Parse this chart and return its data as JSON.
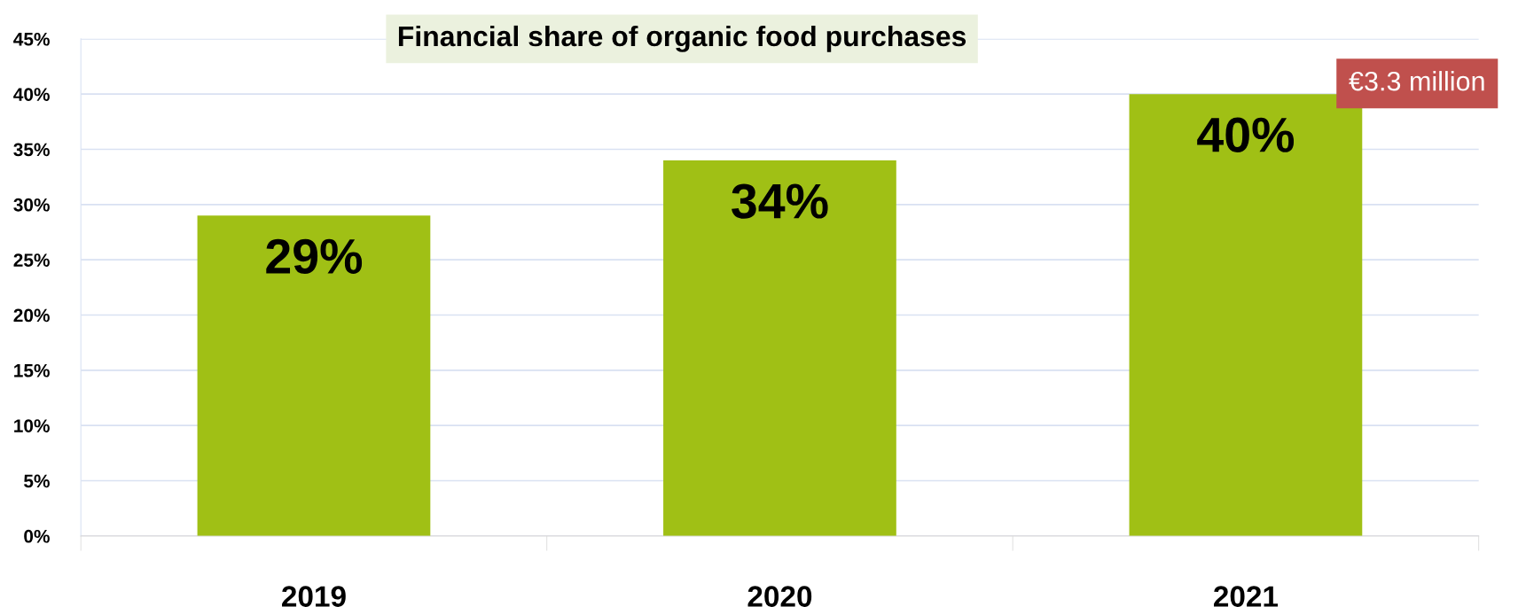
{
  "chart_data": {
    "type": "bar",
    "title": "Financial share of organic food purchases",
    "categories": [
      "2019",
      "2020",
      "2021"
    ],
    "values": [
      29,
      34,
      40
    ],
    "value_labels": [
      "29%",
      "34%",
      "40%"
    ],
    "color": "#a0c015",
    "ylim": [
      0,
      45
    ],
    "yticks": [
      {
        "value": 0,
        "label": "0%"
      },
      {
        "value": 5,
        "label": "5%"
      },
      {
        "value": 10,
        "label": "10%"
      },
      {
        "value": 15,
        "label": "15%"
      },
      {
        "value": 20,
        "label": "20%"
      },
      {
        "value": 25,
        "label": "25%"
      },
      {
        "value": 30,
        "label": "30%"
      },
      {
        "value": 35,
        "label": "35%"
      },
      {
        "value": 40,
        "label": "40%"
      },
      {
        "value": 45,
        "label": "45%"
      }
    ],
    "grid": "y",
    "annotations": [
      "€3.3 million"
    ]
  }
}
